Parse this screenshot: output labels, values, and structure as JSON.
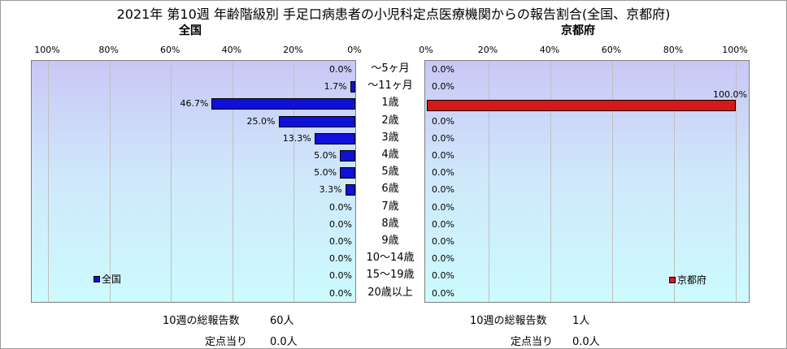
{
  "title": "2021年 第10週 年齢階級別 手足口病患者の小児科定点医療機関からの報告割合(全国、京都府)",
  "chart_data": [
    {
      "type": "bar",
      "subtitle": "全国",
      "orientation": "horizontal-reversed",
      "xlim": [
        0,
        100
      ],
      "ticks": [
        "100%",
        "80%",
        "60%",
        "40%",
        "20%",
        "0%"
      ],
      "categories": [
        "〜5ヶ月",
        "〜11ヶ月",
        "1歳",
        "2歳",
        "3歳",
        "4歳",
        "5歳",
        "6歳",
        "7歳",
        "8歳",
        "9歳",
        "10〜14歳",
        "15〜19歳",
        "20歳以上"
      ],
      "values": [
        0.0,
        1.7,
        46.7,
        25.0,
        13.3,
        5.0,
        5.0,
        3.3,
        0.0,
        0.0,
        0.0,
        0.0,
        0.0,
        0.0
      ],
      "labels": [
        "0.0%",
        "1.7%",
        "46.7%",
        "25.0%",
        "13.3%",
        "5.0%",
        "5.0%",
        "3.3%",
        "0.0%",
        "0.0%",
        "0.0%",
        "0.0%",
        "0.0%",
        "0.0%"
      ],
      "legend": "全国",
      "color": "#1010d8"
    },
    {
      "type": "bar",
      "subtitle": "京都府",
      "orientation": "horizontal",
      "xlim": [
        0,
        100
      ],
      "ticks": [
        "0%",
        "20%",
        "40%",
        "60%",
        "80%",
        "100%"
      ],
      "categories": [
        "〜5ヶ月",
        "〜11ヶ月",
        "1歳",
        "2歳",
        "3歳",
        "4歳",
        "5歳",
        "6歳",
        "7歳",
        "8歳",
        "9歳",
        "10〜14歳",
        "15〜19歳",
        "20歳以上"
      ],
      "values": [
        0.0,
        0.0,
        100.0,
        0.0,
        0.0,
        0.0,
        0.0,
        0.0,
        0.0,
        0.0,
        0.0,
        0.0,
        0.0,
        0.0
      ],
      "labels": [
        "0.0%",
        "0.0%",
        "100.0%",
        "0.0%",
        "0.0%",
        "0.0%",
        "0.0%",
        "0.0%",
        "0.0%",
        "0.0%",
        "0.0%",
        "0.0%",
        "0.0%",
        "0.0%"
      ],
      "legend": "京都府",
      "color": "#d81818"
    }
  ],
  "footer": {
    "left": {
      "total_label": "10週の総報告数",
      "total_value": "60人",
      "per_label": "定点当り",
      "per_value": "0.0人"
    },
    "right": {
      "total_label": "10週の総報告数",
      "total_value": "1人",
      "per_label": "定点当り",
      "per_value": "0.0人"
    }
  }
}
